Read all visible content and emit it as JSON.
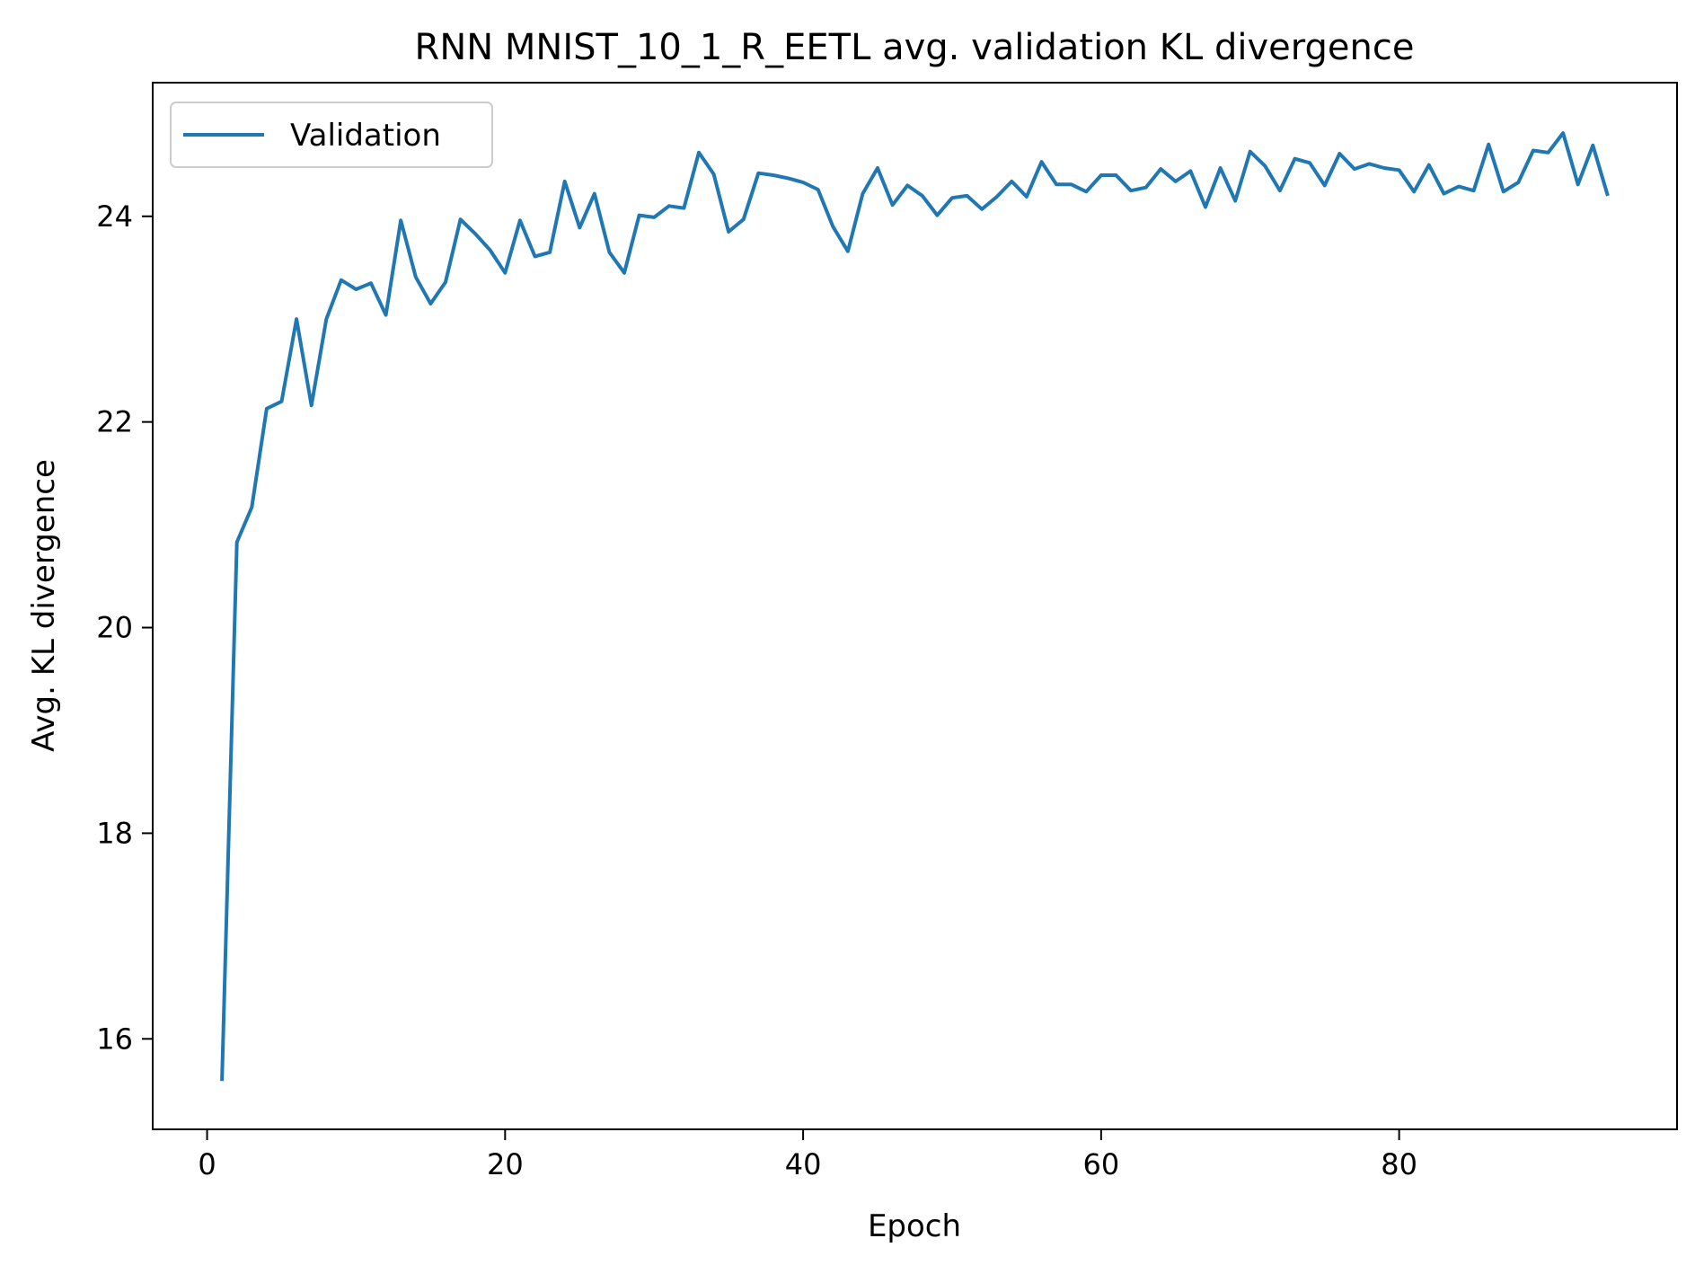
{
  "chart_data": {
    "type": "line",
    "title": "RNN MNIST_10_1_R_EETL avg. validation KL divergence",
    "xlabel": "Epoch",
    "ylabel": "Avg. KL divergence",
    "xlim": [
      -3.65,
      98.65
    ],
    "ylim": [
      15.12,
      25.3
    ],
    "xticks": [
      0,
      20,
      40,
      60,
      80
    ],
    "yticks": [
      16,
      18,
      20,
      22,
      24
    ],
    "grid": false,
    "legend_position": "top-left",
    "colors": {
      "series": "#1f77b4",
      "axes": "#000000",
      "background": "#ffffff"
    },
    "series": [
      {
        "name": "Validation",
        "x": [
          1,
          2,
          3,
          4,
          5,
          6,
          7,
          8,
          9,
          10,
          11,
          12,
          13,
          14,
          15,
          16,
          17,
          18,
          19,
          20,
          21,
          22,
          23,
          24,
          25,
          26,
          27,
          28,
          29,
          30,
          31,
          32,
          33,
          34,
          35,
          36,
          37,
          38,
          39,
          40,
          41,
          42,
          43,
          44,
          45,
          46,
          47,
          48,
          49,
          50,
          51,
          52,
          53,
          54,
          55,
          56,
          57,
          58,
          59,
          60,
          61,
          62,
          63,
          64,
          65,
          66,
          67,
          68,
          69,
          70,
          71,
          72,
          73,
          74,
          75,
          76,
          77,
          78,
          79,
          80,
          81,
          82,
          83,
          84,
          85,
          86,
          87,
          88,
          89,
          90,
          91,
          92,
          93,
          94
        ],
        "y": [
          15.59,
          20.83,
          21.17,
          22.13,
          22.2,
          23.0,
          22.16,
          23.0,
          23.38,
          23.29,
          23.35,
          23.04,
          23.96,
          23.41,
          23.15,
          23.36,
          23.97,
          23.83,
          23.67,
          23.45,
          23.96,
          23.61,
          23.65,
          24.34,
          23.89,
          24.22,
          23.65,
          23.45,
          24.01,
          23.99,
          24.1,
          24.08,
          24.62,
          24.41,
          23.85,
          23.97,
          24.42,
          24.4,
          24.37,
          24.33,
          24.26,
          23.9,
          23.66,
          24.22,
          24.47,
          24.11,
          24.3,
          24.2,
          24.01,
          24.18,
          24.2,
          24.07,
          24.19,
          24.34,
          24.19,
          24.53,
          24.31,
          24.31,
          24.24,
          24.4,
          24.4,
          24.25,
          24.28,
          24.46,
          24.34,
          24.44,
          24.09,
          24.47,
          24.15,
          24.63,
          24.49,
          24.25,
          24.56,
          24.52,
          24.3,
          24.61,
          24.46,
          24.51,
          24.47,
          24.45,
          24.24,
          24.5,
          24.22,
          24.29,
          24.25,
          24.7,
          24.24,
          24.33,
          24.64,
          24.62,
          24.81,
          24.31,
          24.69,
          24.2
        ]
      }
    ]
  }
}
